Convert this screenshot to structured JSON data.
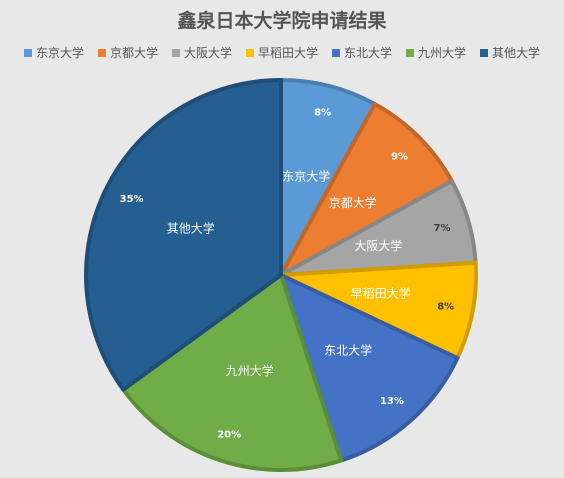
{
  "chart_data": {
    "type": "pie",
    "title": "鑫泉日本大学院申请结果",
    "legend_position": "top",
    "categories": [
      "东京大学",
      "京都大学",
      "大阪大学",
      "早稻田大学",
      "东北大学",
      "九州大学",
      "其他大学"
    ],
    "values": [
      8,
      9,
      7,
      8,
      13,
      20,
      35
    ],
    "value_labels": [
      "8%",
      "9%",
      "7%",
      "8%",
      "13%",
      "20%",
      "35%"
    ],
    "colors": [
      "#5b9bd5",
      "#ed7d31",
      "#a5a5a5",
      "#ffc000",
      "#4472c4",
      "#70ad47",
      "#255e91"
    ]
  }
}
